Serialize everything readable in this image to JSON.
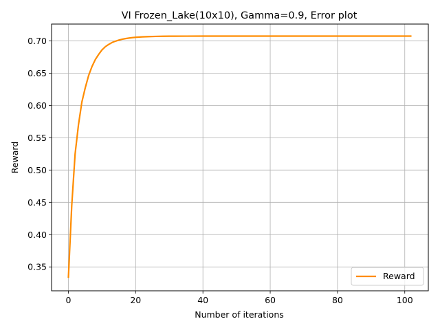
{
  "chart_data": {
    "type": "line",
    "title": "VI Frozen_Lake(10x10), Gamma=0.9, Error plot",
    "xlabel": "Number of iterations",
    "ylabel": "Reward",
    "xlim": [
      -5,
      107
    ],
    "ylim": [
      0.313,
      0.726
    ],
    "xticks": [
      0,
      20,
      40,
      60,
      80,
      100
    ],
    "yticks": [
      0.35,
      0.4,
      0.45,
      0.5,
      0.55,
      0.6,
      0.65,
      0.7
    ],
    "xtick_labels": [
      "0",
      "20",
      "40",
      "60",
      "80",
      "100"
    ],
    "ytick_labels": [
      "0.35",
      "0.40",
      "0.45",
      "0.50",
      "0.55",
      "0.60",
      "0.65",
      "0.70"
    ],
    "grid": true,
    "legend_position": "lower right",
    "series": [
      {
        "name": "Reward",
        "color": "#ff8c00",
        "x": [
          0,
          1,
          2,
          3,
          4,
          5,
          6,
          7,
          8,
          9,
          10,
          11,
          12,
          13,
          14,
          15,
          16,
          17,
          18,
          19,
          20,
          22,
          24,
          26,
          28,
          30,
          35,
          40,
          45,
          50,
          60,
          70,
          80,
          90,
          100,
          102
        ],
        "y": [
          0.333,
          0.445,
          0.525,
          0.57,
          0.605,
          0.627,
          0.646,
          0.66,
          0.671,
          0.679,
          0.686,
          0.691,
          0.6945,
          0.6975,
          0.6995,
          0.7012,
          0.7025,
          0.7035,
          0.7043,
          0.705,
          0.7055,
          0.7062,
          0.7066,
          0.7069,
          0.7071,
          0.7072,
          0.7073,
          0.7074,
          0.7074,
          0.7074,
          0.7074,
          0.7074,
          0.7074,
          0.7074,
          0.7074,
          0.7074
        ]
      }
    ]
  }
}
